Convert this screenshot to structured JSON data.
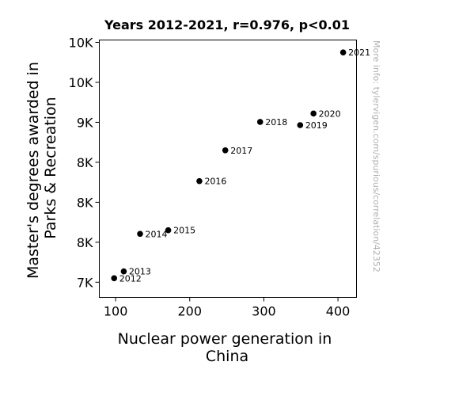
{
  "chart_data": {
    "type": "scatter",
    "title": "Years 2012-2021, r=0.976, p<0.01",
    "xlabel": [
      "Nuclear power generation in",
      "China"
    ],
    "ylabel": [
      "Master's degrees awarded in",
      "Parks & Recreation"
    ],
    "xlim": [
      78,
      425
    ],
    "ylim": [
      6810,
      10030
    ],
    "x_ticks": [
      {
        "value": 100,
        "label": "100"
      },
      {
        "value": 200,
        "label": "200"
      },
      {
        "value": 300,
        "label": "300"
      },
      {
        "value": 400,
        "label": "400"
      }
    ],
    "y_ticks": [
      {
        "value": 7000,
        "label": "7K"
      },
      {
        "value": 7500,
        "label": "8K"
      },
      {
        "value": 8000,
        "label": "8K"
      },
      {
        "value": 8500,
        "label": "8K"
      },
      {
        "value": 9000,
        "label": "9K"
      },
      {
        "value": 9500,
        "label": "10K"
      },
      {
        "value": 10000,
        "label": "10K"
      }
    ],
    "points": [
      {
        "x": 98,
        "y": 7050,
        "label": "2012"
      },
      {
        "x": 111,
        "y": 7135,
        "label": "2013"
      },
      {
        "x": 133,
        "y": 7605,
        "label": "2014"
      },
      {
        "x": 171,
        "y": 7650,
        "label": "2015"
      },
      {
        "x": 213,
        "y": 8265,
        "label": "2016"
      },
      {
        "x": 248,
        "y": 8650,
        "label": "2017"
      },
      {
        "x": 295,
        "y": 9005,
        "label": "2018"
      },
      {
        "x": 349,
        "y": 8965,
        "label": "2019"
      },
      {
        "x": 367,
        "y": 9110,
        "label": "2020"
      },
      {
        "x": 407,
        "y": 9875,
        "label": "2021"
      }
    ],
    "grid": false,
    "marker_color": "#000000"
  },
  "watermark": "More info: tylervigen.com/spurious/correlation/42352"
}
